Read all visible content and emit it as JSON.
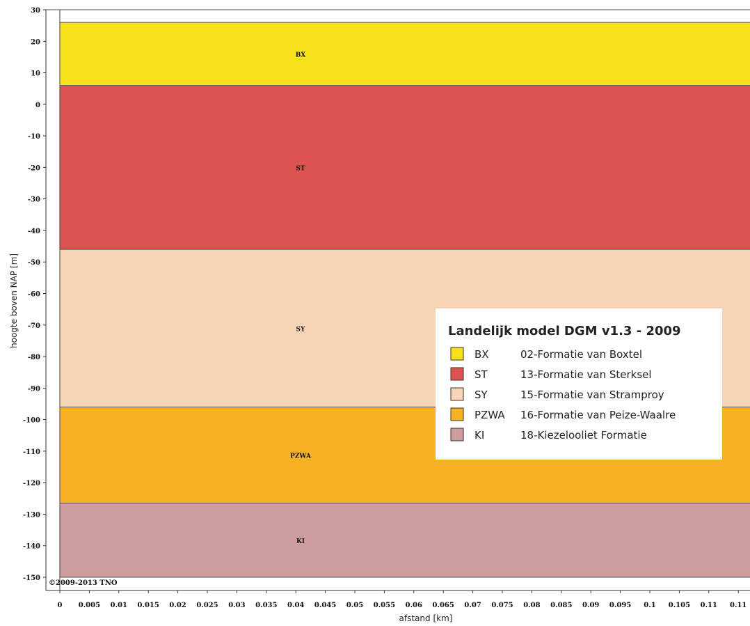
{
  "chart_data": {
    "type": "area",
    "xlabel": "afstand [km]",
    "ylabel": "hoogte boven NAP [m]",
    "xlim": [
      0,
      0.11
    ],
    "ylim": [
      -150,
      30
    ],
    "x_ticks": [
      "0",
      "0.005",
      "0.01",
      "0.015",
      "0.02",
      "0.025",
      "0.03",
      "0.035",
      "0.04",
      "0.045",
      "0.05",
      "0.055",
      "0.06",
      "0.065",
      "0.07",
      "0.075",
      "0.08",
      "0.085",
      "0.09",
      "0.095",
      "0.1",
      "0.105",
      "0.11",
      "0.11"
    ],
    "y_ticks": [
      30,
      20,
      10,
      0,
      -10,
      -20,
      -30,
      -40,
      -50,
      -60,
      -70,
      -80,
      -90,
      -100,
      -110,
      -120,
      -130,
      -140,
      -150
    ],
    "layers": [
      {
        "code": "BX",
        "label": "BX",
        "top": 26,
        "bottom": 6,
        "color": "#f7e11b"
      },
      {
        "code": "ST",
        "label": "ST",
        "top": 6,
        "bottom": -46,
        "color": "#dc5351"
      },
      {
        "code": "SY",
        "label": "SY",
        "top": -46,
        "bottom": -96,
        "color": "#f6d4b5"
      },
      {
        "code": "PZWA",
        "label": "PZWA",
        "top": -96,
        "bottom": -126.5,
        "color": "#f6b223"
      },
      {
        "code": "KI",
        "label": "KI",
        "top": -126.5,
        "bottom": -150,
        "color": "#cc9c9e"
      }
    ],
    "legend": {
      "title": "Landelijk model DGM v1.3 - 2009",
      "placement": "right",
      "entries": [
        {
          "code": "BX",
          "description": "02-Formatie van Boxtel",
          "color": "#f7e11b"
        },
        {
          "code": "ST",
          "description": "13-Formatie van Sterksel",
          "color": "#dc5351"
        },
        {
          "code": "SY",
          "description": "15-Formatie van Stramproy",
          "color": "#f6d4b5"
        },
        {
          "code": "PZWA",
          "description": "16-Formatie van Peize-Waalre",
          "color": "#f6b223"
        },
        {
          "code": "KI",
          "description": "18-Kiezelooliet Formatie",
          "color": "#cc9c9e"
        }
      ]
    },
    "copyright": "©2009-2013 TNO"
  }
}
